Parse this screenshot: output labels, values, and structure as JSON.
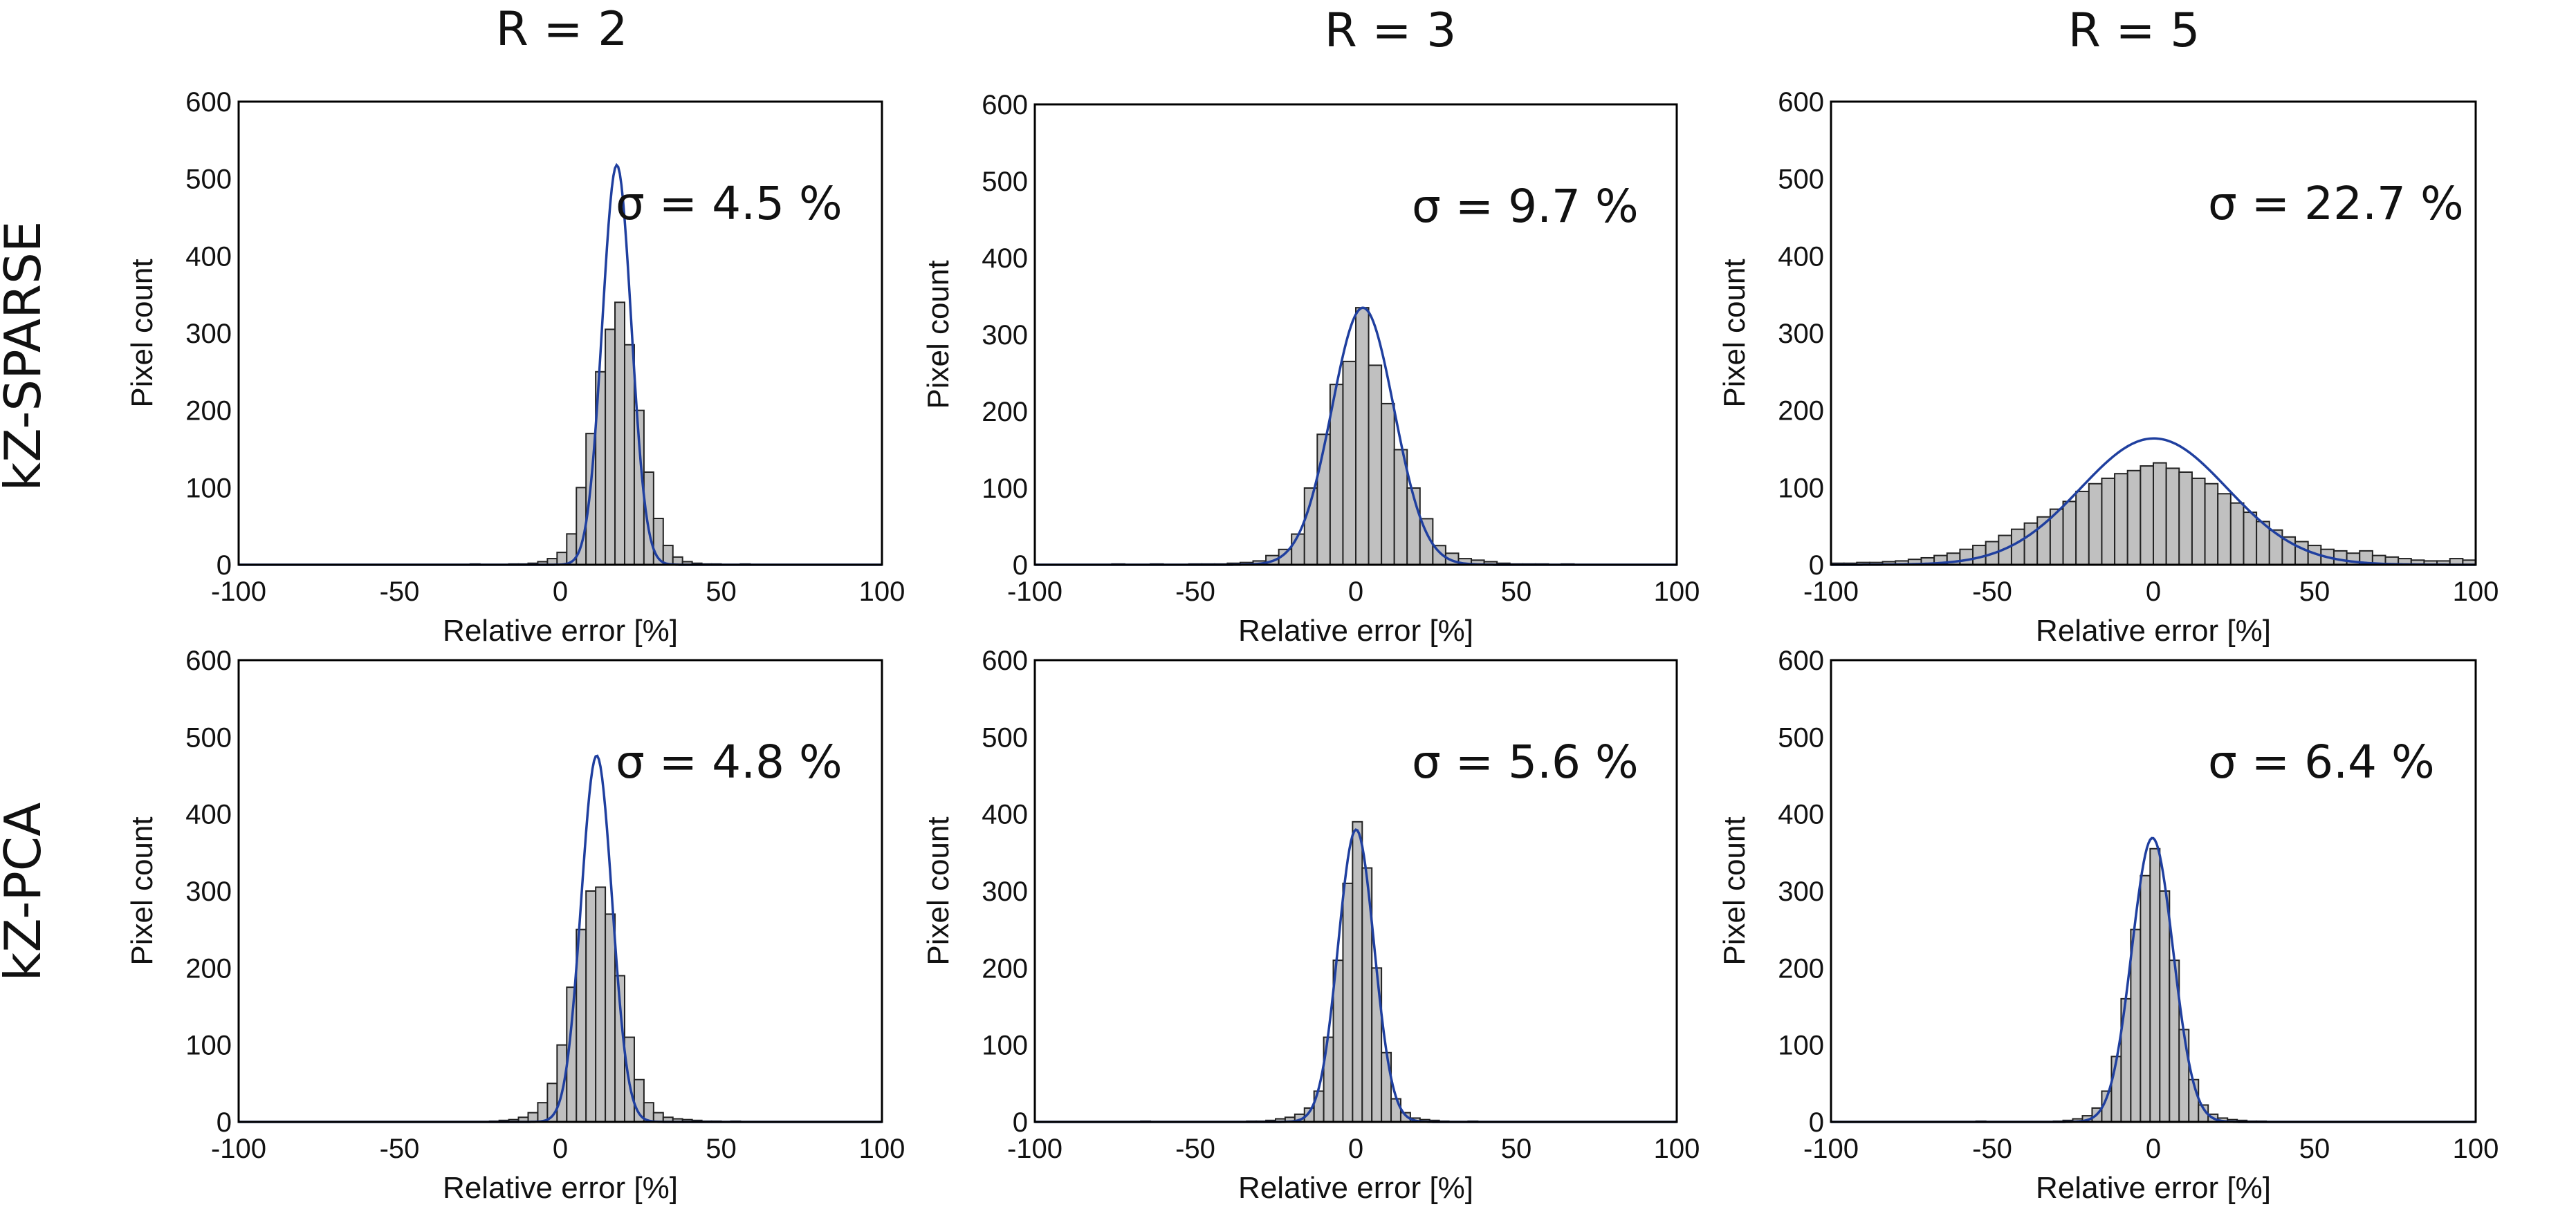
{
  "column_headers": [
    "R = 2",
    "R = 3",
    "R = 5"
  ],
  "row_headers": [
    "kZ-SPARSE",
    "kZ-PCA"
  ],
  "colors": {
    "bar_fill": "#c0c0c0",
    "bar_edge": "#222222",
    "fit_line": "#1f3f9f"
  },
  "chart_data": [
    {
      "type": "bar",
      "row": "kZ-SPARSE",
      "column": "R = 2",
      "annotation": "σ = 4.5 %",
      "xlabel": "Relative error [%]",
      "ylabel": "Pixel count",
      "xlim": [
        -100,
        100
      ],
      "ylim": [
        0,
        600
      ],
      "xticks": [
        -100,
        -50,
        0,
        50,
        100
      ],
      "yticks": [
        0,
        100,
        200,
        300,
        400,
        500,
        600
      ],
      "bin_width": 3,
      "bin_start": -100,
      "counts": [
        0,
        0,
        0,
        0,
        0,
        0,
        0,
        0,
        0,
        0,
        0,
        0,
        0,
        0,
        0,
        0,
        0,
        0,
        0,
        0,
        0,
        0,
        0,
        0,
        1,
        0,
        0,
        0,
        1,
        1,
        2,
        4,
        8,
        16,
        40,
        100,
        170,
        250,
        305,
        340,
        285,
        200,
        120,
        60,
        25,
        10,
        4,
        2,
        1,
        1,
        0,
        0,
        1,
        0,
        0,
        0,
        0,
        0,
        0,
        0,
        0,
        0,
        0,
        0,
        0,
        0,
        0
      ],
      "sigma": 4.5
    },
    {
      "type": "bar",
      "row": "kZ-SPARSE",
      "column": "R = 3",
      "annotation": "σ = 9.7 %",
      "xlabel": "Relative error [%]",
      "ylabel": "Pixel count",
      "xlim": [
        -100,
        100
      ],
      "ylim": [
        0,
        600
      ],
      "xticks": [
        -100,
        -50,
        0,
        50,
        100
      ],
      "yticks": [
        0,
        100,
        200,
        300,
        400,
        500,
        600
      ],
      "bin_width": 4,
      "bin_start": -100,
      "counts": [
        0,
        0,
        0,
        0,
        0,
        0,
        1,
        0,
        0,
        1,
        0,
        0,
        1,
        1,
        1,
        2,
        3,
        5,
        12,
        20,
        40,
        100,
        170,
        235,
        265,
        335,
        260,
        210,
        150,
        100,
        60,
        25,
        15,
        8,
        6,
        4,
        2,
        1,
        1,
        1,
        0,
        1,
        0,
        0,
        0,
        0,
        0,
        0,
        0,
        0
      ],
      "sigma": 9.7
    },
    {
      "type": "bar",
      "row": "kZ-SPARSE",
      "column": "R = 5",
      "annotation": "σ = 22.7 %",
      "xlabel": "Relative error [%]",
      "ylabel": "Pixel count",
      "xlim": [
        -100,
        100
      ],
      "ylim": [
        0,
        600
      ],
      "xticks": [
        -100,
        -50,
        0,
        50,
        100
      ],
      "yticks": [
        0,
        100,
        200,
        300,
        400,
        500,
        600
      ],
      "bin_width": 4,
      "bin_start": -100,
      "counts": [
        2,
        2,
        3,
        3,
        4,
        5,
        7,
        9,
        12,
        15,
        20,
        25,
        30,
        38,
        46,
        54,
        62,
        72,
        82,
        95,
        105,
        112,
        118,
        122,
        128,
        132,
        125,
        120,
        112,
        105,
        92,
        80,
        68,
        56,
        45,
        36,
        30,
        25,
        20,
        18,
        15,
        18,
        12,
        10,
        8,
        6,
        5,
        5,
        8,
        6
      ],
      "sigma": 22.7
    },
    {
      "type": "bar",
      "row": "kZ-PCA",
      "column": "R = 2",
      "annotation": "σ = 4.8 %",
      "xlabel": "Relative error [%]",
      "ylabel": "Pixel count",
      "xlim": [
        -100,
        100
      ],
      "ylim": [
        0,
        600
      ],
      "xticks": [
        -100,
        -50,
        0,
        50,
        100
      ],
      "yticks": [
        0,
        100,
        200,
        300,
        400,
        500,
        600
      ],
      "bin_width": 3,
      "bin_start": -100,
      "counts": [
        0,
        0,
        0,
        0,
        0,
        0,
        0,
        0,
        0,
        0,
        0,
        0,
        0,
        0,
        0,
        0,
        0,
        0,
        0,
        0,
        0,
        0,
        0,
        0,
        0,
        0,
        1,
        2,
        3,
        6,
        12,
        25,
        50,
        100,
        175,
        250,
        300,
        305,
        270,
        190,
        110,
        55,
        25,
        12,
        6,
        4,
        3,
        2,
        1,
        1,
        0,
        1,
        0,
        0,
        0,
        0,
        0,
        0,
        0,
        0,
        0,
        0,
        0,
        0,
        0,
        0,
        0
      ],
      "sigma": 4.8
    },
    {
      "type": "bar",
      "row": "kZ-PCA",
      "column": "R = 3",
      "annotation": "σ = 5.6 %",
      "xlabel": "Relative error [%]",
      "ylabel": "Pixel count",
      "xlim": [
        -100,
        100
      ],
      "ylim": [
        0,
        600
      ],
      "xticks": [
        -100,
        -50,
        0,
        50,
        100
      ],
      "yticks": [
        0,
        100,
        200,
        300,
        400,
        500,
        600
      ],
      "bin_width": 3,
      "bin_start": -100,
      "counts": [
        0,
        0,
        0,
        0,
        0,
        0,
        0,
        0,
        0,
        0,
        0,
        1,
        0,
        0,
        0,
        0,
        0,
        0,
        0,
        0,
        0,
        0,
        1,
        1,
        2,
        4,
        6,
        10,
        18,
        40,
        110,
        210,
        310,
        390,
        330,
        200,
        90,
        30,
        12,
        5,
        3,
        2,
        1,
        0,
        0,
        1,
        0,
        0,
        0,
        0,
        0,
        0,
        0,
        0,
        0,
        0,
        0,
        0,
        0,
        0,
        0,
        0,
        0,
        0,
        0,
        0,
        0
      ],
      "sigma": 5.6
    },
    {
      "type": "bar",
      "row": "kZ-PCA",
      "column": "R = 5",
      "annotation": "σ = 6.4 %",
      "xlabel": "Relative error [%]",
      "ylabel": "Pixel count",
      "xlim": [
        -100,
        100
      ],
      "ylim": [
        0,
        600
      ],
      "xticks": [
        -100,
        -50,
        0,
        50,
        100
      ],
      "yticks": [
        0,
        100,
        200,
        300,
        400,
        500,
        600
      ],
      "bin_width": 3,
      "bin_start": -100,
      "counts": [
        0,
        0,
        0,
        0,
        0,
        0,
        0,
        0,
        0,
        0,
        0,
        0,
        0,
        0,
        0,
        1,
        0,
        0,
        0,
        0,
        0,
        0,
        0,
        1,
        2,
        4,
        8,
        18,
        40,
        85,
        160,
        250,
        320,
        355,
        300,
        210,
        120,
        55,
        22,
        10,
        5,
        3,
        2,
        1,
        1,
        0,
        0,
        0,
        0,
        0,
        0,
        0,
        0,
        0,
        0,
        0,
        0,
        0,
        0,
        0,
        0,
        0,
        0,
        0,
        0,
        0,
        0
      ],
      "sigma": 6.4
    }
  ]
}
